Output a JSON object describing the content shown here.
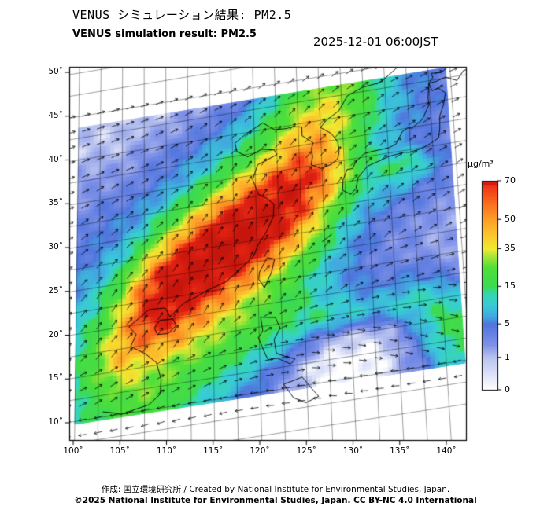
{
  "header": {
    "title_jp": "VENUS シミュレーション結果: PM2.5",
    "title_en": "VENUS simulation result: PM2.5",
    "timestamp": "2025-12-01 06:00JST"
  },
  "footer": {
    "line1": "作成: 国立環境研究所 / Created by National Institute for Environmental Studies, Japan.",
    "line2": "©2025 National Institute for Environmental Studies, Japan. CC BY-NC 4.0 International"
  },
  "chart_data": {
    "type": "heatmap",
    "title": "VENUS simulation result: PM2.5",
    "variable": "PM2.5 concentration",
    "unit": "μg/m³",
    "x_tick_labels": [
      "100˚",
      "105˚",
      "110˚",
      "115˚",
      "120˚",
      "125˚",
      "130˚",
      "135˚",
      "140˚"
    ],
    "y_tick_labels": [
      "50˚",
      "45˚",
      "40˚",
      "35˚",
      "30˚",
      "25˚",
      "20˚",
      "15˚",
      "10˚"
    ],
    "lon_range": [
      100,
      145
    ],
    "lat_range": [
      10,
      50
    ],
    "grid_on": true,
    "colorbar": {
      "label": "μg/m³",
      "position": "right",
      "tick_values": [
        70,
        50,
        35,
        15,
        5,
        1,
        0
      ],
      "tick_pos": [
        0,
        0.185,
        0.325,
        0.505,
        0.685,
        0.845,
        1
      ]
    },
    "color_scale": [
      [
        0,
        "#ffffff"
      ],
      [
        1,
        "#b9c3f0"
      ],
      [
        2.5,
        "#8092e8"
      ],
      [
        5,
        "#4f74dd"
      ],
      [
        7,
        "#41a8e0"
      ],
      [
        10,
        "#38cbd7"
      ],
      [
        13,
        "#35d7b0"
      ],
      [
        15,
        "#3bda52"
      ],
      [
        25,
        "#4fdf38"
      ],
      [
        32,
        "#b7e636"
      ],
      [
        35,
        "#f0ea32"
      ],
      [
        42,
        "#fcc62c"
      ],
      [
        50,
        "#fc9f28"
      ],
      [
        58,
        "#f9701f"
      ],
      [
        66,
        "#f23d18"
      ],
      [
        70,
        "#e02112"
      ],
      [
        90,
        "#c5150c"
      ]
    ],
    "pm25_grid": {
      "cols": 18,
      "rows": 14,
      "values": [
        [
          1,
          1,
          1,
          1,
          1,
          2,
          2,
          3,
          5,
          10,
          18,
          26,
          30,
          22,
          12,
          7,
          5,
          4
        ],
        [
          1,
          1,
          1,
          2,
          2,
          3,
          4,
          6,
          10,
          18,
          30,
          38,
          34,
          22,
          12,
          7,
          5,
          4
        ],
        [
          2,
          2,
          2,
          3,
          4,
          5,
          7,
          10,
          16,
          28,
          42,
          46,
          34,
          18,
          10,
          6,
          5,
          4
        ],
        [
          2,
          3,
          3,
          4,
          5,
          8,
          12,
          20,
          30,
          45,
          58,
          55,
          35,
          16,
          9,
          6,
          4,
          3
        ],
        [
          3,
          4,
          5,
          6,
          10,
          16,
          28,
          45,
          60,
          72,
          78,
          62,
          35,
          15,
          14,
          16,
          8,
          4
        ],
        [
          4,
          5,
          6,
          10,
          20,
          38,
          60,
          78,
          84,
          86,
          72,
          45,
          22,
          10,
          8,
          6,
          4,
          3
        ],
        [
          5,
          6,
          10,
          22,
          45,
          72,
          86,
          90,
          88,
          78,
          52,
          28,
          12,
          6,
          4,
          3,
          3,
          2
        ],
        [
          6,
          9,
          18,
          45,
          76,
          90,
          90,
          84,
          70,
          50,
          30,
          16,
          8,
          5,
          3,
          3,
          2,
          2
        ],
        [
          8,
          14,
          30,
          65,
          86,
          84,
          72,
          58,
          42,
          28,
          18,
          10,
          6,
          4,
          3,
          3,
          2,
          2
        ],
        [
          10,
          18,
          40,
          70,
          75,
          62,
          48,
          36,
          26,
          20,
          14,
          10,
          7,
          5,
          5,
          6,
          5,
          3
        ],
        [
          12,
          26,
          48,
          52,
          50,
          42,
          32,
          26,
          22,
          18,
          15,
          13,
          11,
          9,
          10,
          13,
          12,
          8
        ],
        [
          14,
          26,
          38,
          34,
          30,
          26,
          22,
          18,
          14,
          10,
          5,
          2,
          1,
          1,
          2,
          7,
          15,
          18
        ],
        [
          12,
          20,
          26,
          28,
          24,
          18,
          14,
          11,
          7,
          4,
          1,
          0,
          0,
          0,
          1,
          4,
          12,
          16
        ],
        [
          10,
          16,
          20,
          22,
          18,
          13,
          9,
          6,
          4,
          2,
          1,
          0,
          0,
          0,
          1,
          3,
          8,
          12
        ]
      ]
    },
    "wind": {
      "cols": 10,
      "rows": 9,
      "convention": "arrow points toward compass bearing (deg, 0=N, 90=E)",
      "toward_deg": [
        [
          80,
          80,
          75,
          70,
          65,
          60,
          60,
          65,
          70,
          75
        ],
        [
          75,
          75,
          70,
          60,
          55,
          50,
          50,
          60,
          65,
          70
        ],
        [
          70,
          65,
          60,
          50,
          40,
          40,
          45,
          55,
          65,
          70
        ],
        [
          60,
          55,
          50,
          40,
          35,
          35,
          40,
          50,
          60,
          65
        ],
        [
          50,
          45,
          40,
          35,
          30,
          35,
          45,
          55,
          65,
          70
        ],
        [
          45,
          40,
          35,
          30,
          35,
          45,
          60,
          70,
          80,
          85
        ],
        [
          50,
          45,
          40,
          45,
          55,
          70,
          80,
          90,
          95,
          100
        ],
        [
          70,
          65,
          65,
          70,
          80,
          90,
          100,
          105,
          110,
          110
        ],
        [
          270,
          265,
          260,
          265,
          270,
          275,
          280,
          275,
          270,
          265
        ]
      ]
    }
  },
  "map": {
    "coastlines": [
      [
        [
          105.8,
          19.9
        ],
        [
          108,
          21.5
        ],
        [
          109.8,
          21.4
        ],
        [
          110.3,
          20.3
        ],
        [
          111.8,
          21.6
        ],
        [
          113.2,
          22.1
        ],
        [
          114.3,
          22.6
        ],
        [
          116.5,
          23.3
        ],
        [
          118.1,
          24.5
        ],
        [
          119.6,
          25.7
        ],
        [
          120.1,
          26.9
        ],
        [
          121.1,
          28.3
        ],
        [
          121.9,
          29.9
        ],
        [
          122,
          31.3
        ],
        [
          121.2,
          32.1
        ],
        [
          120.3,
          32.7
        ],
        [
          119.7,
          34.5
        ],
        [
          120.3,
          36.1
        ],
        [
          122.5,
          36.9
        ],
        [
          122.2,
          37.5
        ],
        [
          120.8,
          37.8
        ],
        [
          119.2,
          37.2
        ],
        [
          118,
          38
        ],
        [
          117.8,
          39
        ],
        [
          119,
          39.8
        ],
        [
          121,
          40.8
        ],
        [
          122.3,
          39.8
        ],
        [
          123.7,
          39.7
        ],
        [
          124.4,
          39.8
        ],
        [
          125.4,
          39.6
        ],
        [
          125.4,
          38.6
        ],
        [
          126.6,
          37.6
        ],
        [
          126.4,
          36.9
        ],
        [
          126.5,
          36
        ],
        [
          126.3,
          35.1
        ],
        [
          127.4,
          34.5
        ],
        [
          128.6,
          34.8
        ],
        [
          129.3,
          35.3
        ],
        [
          129.5,
          36.1
        ],
        [
          129.4,
          37.2
        ],
        [
          128.7,
          38.3
        ],
        [
          127.5,
          39.2
        ],
        [
          128.2,
          39.9
        ],
        [
          129.7,
          40.8
        ],
        [
          130.7,
          42.3
        ],
        [
          132.5,
          43
        ],
        [
          134.5,
          43.2
        ],
        [
          136.8,
          44.8
        ],
        [
          138.5,
          46.5
        ],
        [
          140.2,
          48.4
        ],
        [
          141.5,
          50.2
        ]
      ],
      [
        [
          129.7,
          31.6
        ],
        [
          130.6,
          31
        ],
        [
          131.2,
          31.6
        ],
        [
          131.5,
          32.8
        ],
        [
          132,
          33.3
        ],
        [
          132.6,
          33.9
        ],
        [
          134,
          34.3
        ],
        [
          135,
          34.6
        ],
        [
          135.8,
          34.7
        ],
        [
          136.8,
          34.8
        ],
        [
          137.3,
          34.7
        ],
        [
          138.7,
          34.9
        ],
        [
          139.7,
          35.3
        ],
        [
          140.7,
          35.8
        ],
        [
          140.9,
          36.8
        ],
        [
          141,
          38.3
        ],
        [
          141.5,
          39.5
        ],
        [
          141.8,
          40.8
        ],
        [
          141,
          41.5
        ],
        [
          140.3,
          41.3
        ],
        [
          140,
          42.2
        ],
        [
          139.8,
          40.5
        ],
        [
          139.9,
          39.8
        ],
        [
          139,
          38.2
        ],
        [
          137.8,
          37.4
        ],
        [
          137.3,
          37.5
        ],
        [
          136.7,
          37.2
        ],
        [
          135.9,
          35.9
        ],
        [
          135.1,
          35.6
        ],
        [
          133.3,
          35.5
        ],
        [
          132.3,
          35.4
        ],
        [
          131.3,
          34.6
        ],
        [
          130.9,
          33.9
        ],
        [
          130.3,
          33.9
        ],
        [
          129.8,
          32.8
        ],
        [
          129.7,
          31.6
        ]
      ],
      [
        [
          140,
          42.2
        ],
        [
          140.5,
          42.8
        ],
        [
          140.3,
          43.3
        ],
        [
          141.5,
          43.2
        ],
        [
          142.5,
          43.9
        ],
        [
          143.8,
          44.1
        ],
        [
          145.3,
          44.3
        ],
        [
          145.5,
          43.3
        ],
        [
          144,
          43
        ],
        [
          143.2,
          42
        ],
        [
          141.9,
          42.6
        ],
        [
          140.9,
          42.3
        ],
        [
          140,
          42.2
        ]
      ],
      [
        [
          121.1,
          25.3
        ],
        [
          121.9,
          25
        ],
        [
          121.5,
          23.5
        ],
        [
          120.7,
          21.9
        ],
        [
          120.1,
          23
        ],
        [
          120.2,
          23.8
        ],
        [
          121.1,
          25.3
        ]
      ],
      [
        [
          109.2,
          20.1
        ],
        [
          110.6,
          20
        ],
        [
          111,
          19.2
        ],
        [
          110.1,
          18.4
        ],
        [
          108.9,
          18.5
        ],
        [
          108.6,
          19.3
        ],
        [
          109.2,
          20.1
        ]
      ],
      [
        [
          120.2,
          18.6
        ],
        [
          121.8,
          18.3
        ],
        [
          122.3,
          17
        ],
        [
          121.6,
          15.8
        ],
        [
          121.8,
          14.2
        ],
        [
          122.5,
          13.8
        ],
        [
          123.8,
          13.2
        ],
        [
          123.3,
          12.7
        ],
        [
          121.9,
          13.6
        ],
        [
          120.9,
          13.6
        ],
        [
          120.6,
          14.3
        ],
        [
          119.9,
          16.3
        ],
        [
          120.4,
          17
        ],
        [
          120.2,
          18.6
        ]
      ],
      [
        [
          122.5,
          10.5
        ],
        [
          124.5,
          11
        ],
        [
          125.5,
          9.5
        ],
        [
          126.2,
          8.5
        ],
        [
          124.8,
          8
        ],
        [
          123.5,
          8.8
        ],
        [
          122.5,
          10.5
        ]
      ],
      [
        [
          105.8,
          19.9
        ],
        [
          106.6,
          18.9
        ],
        [
          106,
          17.6
        ],
        [
          107.6,
          16.5
        ],
        [
          108.8,
          15.3
        ],
        [
          109.3,
          13.3
        ],
        [
          109.2,
          11.6
        ],
        [
          108,
          10.6
        ],
        [
          106.5,
          10.3
        ],
        [
          105,
          10
        ],
        [
          103.8,
          10.4
        ],
        [
          103,
          10.6
        ]
      ],
      [
        [
          142,
          46
        ],
        [
          142.3,
          47.5
        ],
        [
          142.1,
          49
        ],
        [
          142.6,
          50.8
        ],
        [
          143.3,
          51.5
        ]
      ],
      [
        [
          127.2,
          26.1
        ],
        [
          128.3,
          26.8
        ]
      ]
    ]
  }
}
